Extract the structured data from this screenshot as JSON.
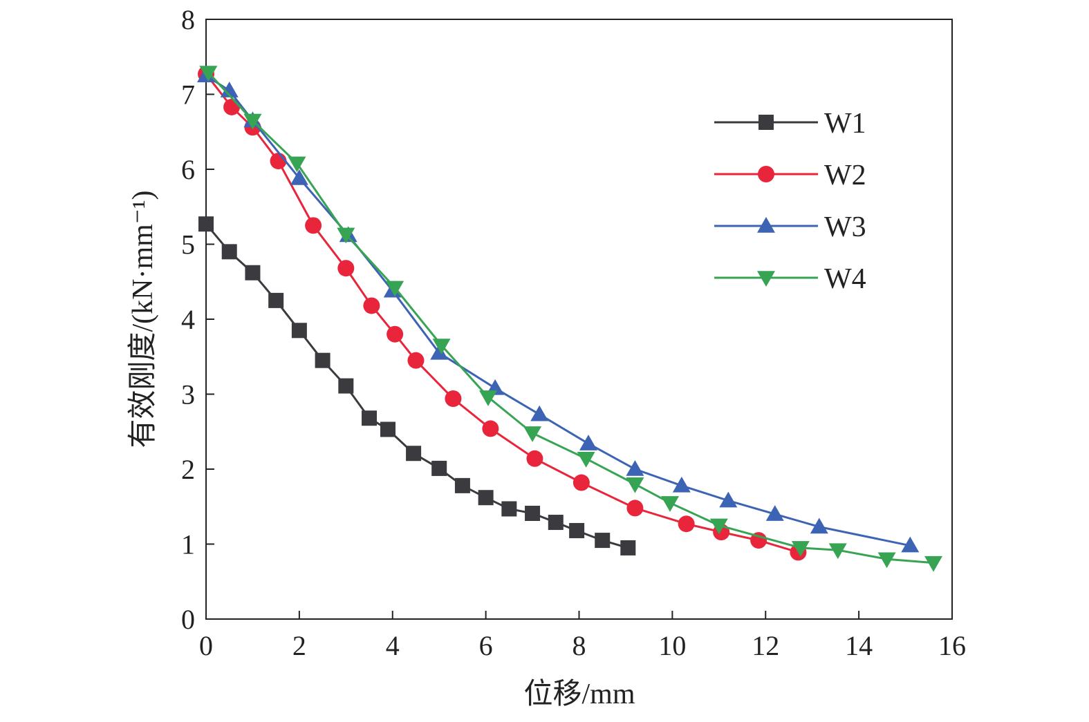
{
  "chart_data": {
    "type": "line",
    "title": "",
    "xlabel": "位移/mm",
    "ylabel": "有效刚度/(kN·mm⁻¹)",
    "xlim": [
      0,
      16
    ],
    "ylim": [
      0,
      8
    ],
    "xticks": [
      0,
      2,
      4,
      6,
      8,
      10,
      12,
      14,
      16
    ],
    "yticks": [
      0,
      1,
      2,
      3,
      4,
      5,
      6,
      7,
      8
    ],
    "xtick_labels": [
      "0",
      "2",
      "4",
      "6",
      "8",
      "10",
      "12",
      "14",
      "16"
    ],
    "ytick_labels": [
      "0",
      "1",
      "2",
      "3",
      "4",
      "5",
      "6",
      "7",
      "8"
    ],
    "grid": false,
    "legend_position": "top-right",
    "series": [
      {
        "name": "W1",
        "color": "#3a3a3f",
        "marker": "square",
        "points": [
          [
            0.0,
            5.27
          ],
          [
            0.5,
            4.9
          ],
          [
            1.0,
            4.62
          ],
          [
            1.5,
            4.25
          ],
          [
            2.0,
            3.85
          ],
          [
            2.5,
            3.45
          ],
          [
            3.0,
            3.11
          ],
          [
            3.5,
            2.68
          ],
          [
            3.9,
            2.53
          ],
          [
            4.45,
            2.21
          ],
          [
            5.0,
            2.01
          ],
          [
            5.5,
            1.78
          ],
          [
            6.0,
            1.62
          ],
          [
            6.5,
            1.47
          ],
          [
            7.0,
            1.41
          ],
          [
            7.5,
            1.29
          ],
          [
            7.95,
            1.18
          ],
          [
            8.5,
            1.05
          ],
          [
            9.05,
            0.95
          ]
        ]
      },
      {
        "name": "W2",
        "color": "#e8253a",
        "marker": "circle",
        "points": [
          [
            0.0,
            7.27
          ],
          [
            0.55,
            6.83
          ],
          [
            1.0,
            6.56
          ],
          [
            1.55,
            6.11
          ],
          [
            2.3,
            5.25
          ],
          [
            3.0,
            4.68
          ],
          [
            3.55,
            4.18
          ],
          [
            4.05,
            3.8
          ],
          [
            4.5,
            3.45
          ],
          [
            5.3,
            2.94
          ],
          [
            6.1,
            2.54
          ],
          [
            7.05,
            2.14
          ],
          [
            8.05,
            1.82
          ],
          [
            9.2,
            1.48
          ],
          [
            10.3,
            1.27
          ],
          [
            11.05,
            1.16
          ],
          [
            11.85,
            1.05
          ],
          [
            12.7,
            0.89
          ]
        ]
      },
      {
        "name": "W3",
        "color": "#3d64b4",
        "marker": "triangle-up",
        "points": [
          [
            0.0,
            7.25
          ],
          [
            0.5,
            7.05
          ],
          [
            1.0,
            6.65
          ],
          [
            2.0,
            5.88
          ],
          [
            3.05,
            5.12
          ],
          [
            4.0,
            4.38
          ],
          [
            5.0,
            3.55
          ],
          [
            6.2,
            3.08
          ],
          [
            7.15,
            2.73
          ],
          [
            8.2,
            2.34
          ],
          [
            9.2,
            2.0
          ],
          [
            10.2,
            1.78
          ],
          [
            11.2,
            1.58
          ],
          [
            12.2,
            1.4
          ],
          [
            13.15,
            1.23
          ],
          [
            15.1,
            0.98
          ]
        ]
      },
      {
        "name": "W4",
        "color": "#37a454",
        "marker": "triangle-down",
        "points": [
          [
            0.05,
            7.29
          ],
          [
            1.0,
            6.65
          ],
          [
            1.95,
            6.08
          ],
          [
            3.0,
            5.13
          ],
          [
            4.05,
            4.42
          ],
          [
            5.05,
            3.65
          ],
          [
            6.05,
            2.96
          ],
          [
            7.0,
            2.48
          ],
          [
            8.15,
            2.14
          ],
          [
            9.2,
            1.8
          ],
          [
            9.95,
            1.55
          ],
          [
            11.0,
            1.25
          ],
          [
            12.75,
            0.95
          ],
          [
            13.55,
            0.92
          ],
          [
            14.6,
            0.8
          ],
          [
            15.6,
            0.75
          ]
        ]
      }
    ]
  }
}
